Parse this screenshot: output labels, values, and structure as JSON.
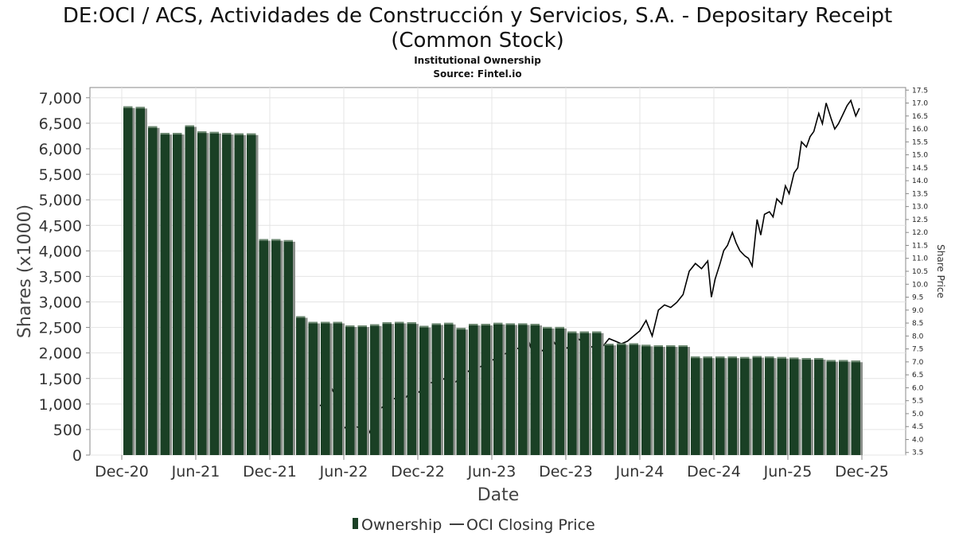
{
  "chart_data": {
    "type": "bar",
    "title": "DE:OCI / ACS, Actividades de Construcción y Servicios, S.A. - Depositary Receipt (Common Stock)",
    "subtitle_1": "Institutional Ownership",
    "subtitle_2": "Source: Fintel.io",
    "xlabel": "Date",
    "ylabel": "Shares (x1000)",
    "y2label": "Share Price",
    "ylim": [
      0,
      7200
    ],
    "y2lim": [
      3.4,
      17.6
    ],
    "grid": true,
    "legend_position": "bottom-center",
    "x_tick_labels": [
      "Dec-20",
      "Jun-21",
      "Dec-21",
      "Jun-22",
      "Dec-22",
      "Jun-23",
      "Dec-23",
      "Jun-24",
      "Dec-24",
      "Jun-25",
      "Dec-25"
    ],
    "y_tick_labels": [
      "0",
      "500",
      "1,000",
      "1,500",
      "2,000",
      "2,500",
      "3,000",
      "3,500",
      "4,000",
      "4,500",
      "5,000",
      "5,500",
      "6,000",
      "6,500",
      "7,000"
    ],
    "y2_tick_labels": [
      "3.5",
      "4.0",
      "4.5",
      "5.0",
      "5.5",
      "6.0",
      "6.5",
      "7.0",
      "7.5",
      "8.0",
      "8.5",
      "9.0",
      "9.5",
      "10.0",
      "10.5",
      "11.0",
      "11.5",
      "12.0",
      "12.5",
      "13.0",
      "13.5",
      "14.0",
      "14.5",
      "15.0",
      "15.5",
      "16.0",
      "16.5",
      "17.0",
      "17.5"
    ],
    "series": [
      {
        "name": "Ownership",
        "kind": "bar",
        "color": "#1a4025",
        "x_month_index": [
          0,
          1,
          2,
          3,
          4,
          5,
          6,
          7,
          8,
          9,
          10,
          11,
          12,
          13,
          14,
          15,
          16,
          17,
          18,
          19,
          20,
          21,
          22,
          23,
          24,
          25,
          26,
          27,
          28,
          29,
          30,
          31,
          32,
          33,
          34,
          35,
          36,
          37,
          38,
          39,
          40,
          41,
          42,
          43,
          44,
          45,
          46,
          47,
          48,
          49,
          50,
          51,
          52,
          53,
          54,
          55,
          56,
          57,
          58,
          59
        ],
        "values": [
          6830,
          6820,
          6440,
          6310,
          6310,
          6460,
          6340,
          6330,
          6310,
          6300,
          6300,
          4230,
          4230,
          4210,
          2720,
          2610,
          2610,
          2610,
          2540,
          2540,
          2560,
          2600,
          2610,
          2600,
          2530,
          2580,
          2590,
          2490,
          2570,
          2570,
          2590,
          2580,
          2580,
          2570,
          2510,
          2510,
          2420,
          2420,
          2420,
          2180,
          2190,
          2190,
          2160,
          2150,
          2150,
          2150,
          1930,
          1930,
          1930,
          1930,
          1920,
          1940,
          1930,
          1920,
          1910,
          1900,
          1900,
          1860,
          1860,
          1850
        ]
      },
      {
        "name": "OCI Closing Price",
        "kind": "line",
        "color": "#000000",
        "x_month_index": [
          15,
          15.5,
          16,
          16.5,
          17,
          17.5,
          18,
          18.5,
          19,
          19.5,
          20,
          20.5,
          21,
          21.5,
          22,
          22.5,
          23,
          23.5,
          24,
          24.5,
          25,
          25.5,
          26,
          26.5,
          27,
          27.5,
          28,
          28.5,
          29,
          29.5,
          30,
          30.5,
          31,
          31.5,
          32,
          32.5,
          33,
          33.5,
          34,
          34.5,
          35,
          35.5,
          36,
          36.5,
          37,
          37.5,
          38,
          38.5,
          39,
          39.5,
          40,
          40.5,
          41,
          41.5,
          42,
          42.5,
          43,
          43.5,
          44,
          44.5,
          45,
          45.5,
          46,
          46.5,
          47,
          47.3,
          47.6,
          48,
          48.3,
          48.6,
          49,
          49.3,
          49.6,
          50,
          50.3,
          50.6,
          51,
          51.3,
          51.6,
          52,
          52.3,
          52.6,
          53,
          53.3,
          53.6,
          54,
          54.3,
          54.6,
          55,
          55.3,
          55.6,
          56,
          56.3,
          56.6,
          57,
          57.3,
          57.6,
          58,
          58.3,
          58.6,
          59,
          59.3
        ],
        "values": [
          5.4,
          5.3,
          5.4,
          6.0,
          5.5,
          4.5,
          4.3,
          4.5,
          4.4,
          4.2,
          4.7,
          5.2,
          5.4,
          5.6,
          5.5,
          5.6,
          5.9,
          5.8,
          6.0,
          6.2,
          6.2,
          6.3,
          6.5,
          6.2,
          6.4,
          6.6,
          6.8,
          6.8,
          6.9,
          7.1,
          7.0,
          7.3,
          7.4,
          7.5,
          7.6,
          7.8,
          7.0,
          7.4,
          7.6,
          7.8,
          7.4,
          7.5,
          7.7,
          7.9,
          7.7,
          7.6,
          7.5,
          7.6,
          7.9,
          7.8,
          7.7,
          7.8,
          8.0,
          8.2,
          8.6,
          8.0,
          9.0,
          9.2,
          9.1,
          9.3,
          9.6,
          10.5,
          10.8,
          10.6,
          10.9,
          9.5,
          10.2,
          10.8,
          11.3,
          11.5,
          12.0,
          11.6,
          11.3,
          11.1,
          11.0,
          10.7,
          12.5,
          11.9,
          12.7,
          12.8,
          12.6,
          13.3,
          13.1,
          13.8,
          13.5,
          14.3,
          14.5,
          15.5,
          15.3,
          15.7,
          15.9,
          16.6,
          16.2,
          17.0,
          16.4,
          16.0,
          16.2,
          16.6,
          16.9,
          17.1,
          16.5,
          16.8
        ]
      }
    ]
  }
}
